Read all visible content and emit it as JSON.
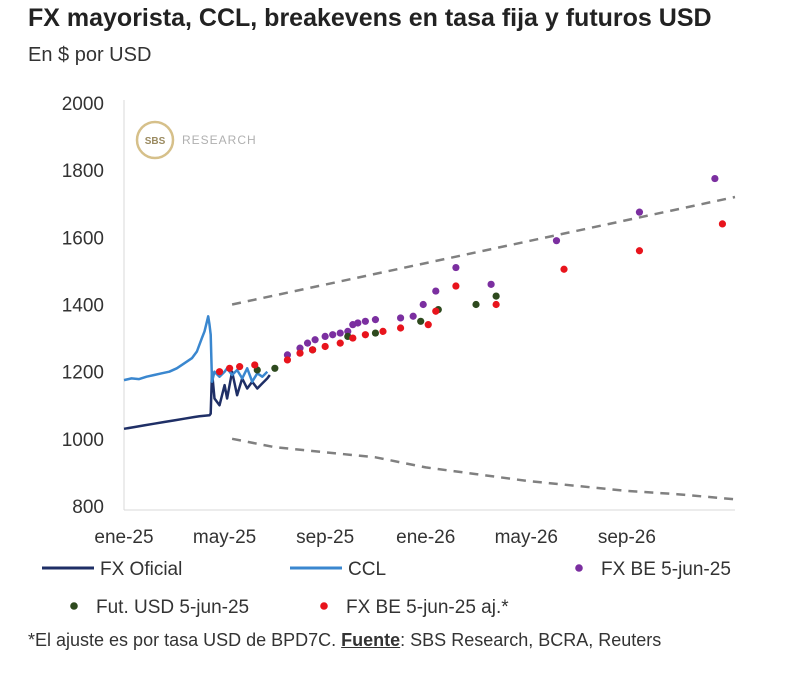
{
  "title": "FX mayorista, CCL, breakevens en tasa fija y futuros USD",
  "subtitle": "En $ por USD",
  "watermark": {
    "badge": "SBS",
    "text": "RESEARCH"
  },
  "footnote": {
    "pre": "*El ajuste es por tasa USD de BPD7C. ",
    "source_label": "Fuente",
    "post": ": SBS Research, BCRA, Reuters"
  },
  "colors": {
    "fx_oficial": "#1f2f66",
    "ccl": "#3a87cf",
    "fx_be": "#7b2fa0",
    "fut_usd": "#2e4a1e",
    "fx_be_aj": "#e8141c",
    "dashed": "#808080"
  },
  "chart_data": {
    "type": "line",
    "title": "FX mayorista, CCL, breakevens en tasa fija y futuros USD",
    "ylabel": "En $ por USD",
    "xlim": [
      "2025-01-01",
      "2026-12-31"
    ],
    "ylim": [
      800,
      2000
    ],
    "yticks": [
      800,
      1000,
      1200,
      1400,
      1600,
      1800,
      2000
    ],
    "xticks": [
      {
        "label": "ene-25",
        "value": 0
      },
      {
        "label": "may-25",
        "value": 4
      },
      {
        "label": "sep-25",
        "value": 8
      },
      {
        "label": "ene-26",
        "value": 12
      },
      {
        "label": "may-26",
        "value": 16
      },
      {
        "label": "sep-26",
        "value": 20
      }
    ],
    "x_unit": "months since 2025-01-01",
    "grid": false,
    "legend": [
      {
        "label": "FX Oficial",
        "kind": "line",
        "key": "fx_oficial"
      },
      {
        "label": "CCL",
        "kind": "line",
        "key": "ccl"
      },
      {
        "label": "FX BE 5-jun-25",
        "kind": "dot",
        "key": "fx_be"
      },
      {
        "label": "Fut. USD 5-jun-25",
        "kind": "dot",
        "key": "fut_usd"
      },
      {
        "label": "FX BE 5-jun-25 aj.*",
        "kind": "dot",
        "key": "fx_be_aj"
      }
    ],
    "series": [
      {
        "name": "FX Oficial",
        "kind": "line",
        "key": "fx_oficial",
        "x": [
          0,
          0.4,
          0.8,
          1.2,
          1.6,
          2.0,
          2.4,
          2.8,
          3.0,
          3.2,
          3.4,
          3.45,
          3.5,
          3.6,
          3.8,
          4.0,
          4.1,
          4.3,
          4.5,
          4.7,
          4.9,
          5.0,
          5.1,
          5.3,
          5.5,
          5.7,
          5.8
        ],
        "y": [
          1030,
          1035,
          1040,
          1045,
          1050,
          1055,
          1060,
          1065,
          1067,
          1069,
          1070,
          1075,
          1200,
          1120,
          1100,
          1160,
          1120,
          1200,
          1130,
          1180,
          1150,
          1160,
          1170,
          1150,
          1165,
          1180,
          1190
        ]
      },
      {
        "name": "CCL",
        "kind": "line",
        "key": "ccl",
        "x": [
          0,
          0.3,
          0.6,
          0.9,
          1.2,
          1.5,
          1.8,
          2.1,
          2.4,
          2.7,
          2.9,
          3.1,
          3.2,
          3.3,
          3.35,
          3.4,
          3.45,
          3.5,
          3.6,
          3.8,
          4.0,
          4.1,
          4.3,
          4.5,
          4.7,
          4.9,
          5.1,
          5.3,
          5.5,
          5.7
        ],
        "y": [
          1175,
          1180,
          1178,
          1185,
          1190,
          1195,
          1200,
          1210,
          1225,
          1240,
          1260,
          1300,
          1320,
          1350,
          1365,
          1340,
          1310,
          1170,
          1200,
          1185,
          1200,
          1210,
          1190,
          1205,
          1180,
          1210,
          1170,
          1195,
          1185,
          1200
        ]
      },
      {
        "name": "FX BE 5-jun-25",
        "kind": "dot",
        "key": "fx_be",
        "x": [
          6.5,
          7.0,
          7.3,
          7.6,
          8.0,
          8.3,
          8.6,
          8.9,
          9.1,
          9.3,
          9.6,
          10.0,
          11.0,
          11.5,
          11.9,
          12.4,
          13.2,
          14.6,
          17.2,
          20.5,
          23.5
        ],
        "y": [
          1250,
          1270,
          1285,
          1295,
          1305,
          1310,
          1315,
          1320,
          1340,
          1345,
          1350,
          1355,
          1360,
          1365,
          1400,
          1440,
          1510,
          1460,
          1590,
          1675,
          1775
        ]
      },
      {
        "name": "Fut. USD 5-jun-25",
        "kind": "dot",
        "key": "fut_usd",
        "x": [
          5.3,
          6.0,
          7.5,
          8.9,
          10.0,
          11.8,
          12.5,
          14.0,
          14.8
        ],
        "y": [
          1205,
          1210,
          1265,
          1305,
          1315,
          1350,
          1385,
          1400,
          1425
        ]
      },
      {
        "name": "FX BE 5-jun-25 aj.*",
        "kind": "dot",
        "key": "fx_be_aj",
        "x": [
          3.8,
          4.2,
          4.6,
          5.2,
          6.5,
          7.0,
          7.5,
          8.0,
          8.6,
          9.1,
          9.6,
          10.3,
          11.0,
          12.1,
          12.4,
          13.2,
          14.8,
          17.5,
          20.5,
          23.8
        ],
        "y": [
          1200,
          1210,
          1215,
          1220,
          1235,
          1255,
          1265,
          1275,
          1285,
          1300,
          1310,
          1320,
          1330,
          1340,
          1380,
          1455,
          1400,
          1505,
          1560,
          1640
        ]
      },
      {
        "name": "Banda superior",
        "kind": "dashed",
        "key": "dashed",
        "x": [
          4.3,
          24.3
        ],
        "y": [
          1400,
          1720
        ]
      },
      {
        "name": "Banda inferior",
        "kind": "dashed",
        "key": "dashed",
        "x": [
          4.3,
          6,
          8,
          10,
          12,
          14,
          16,
          18,
          20,
          22,
          24.3
        ],
        "y": [
          1000,
          975,
          960,
          945,
          915,
          895,
          875,
          860,
          845,
          835,
          820
        ]
      }
    ]
  }
}
